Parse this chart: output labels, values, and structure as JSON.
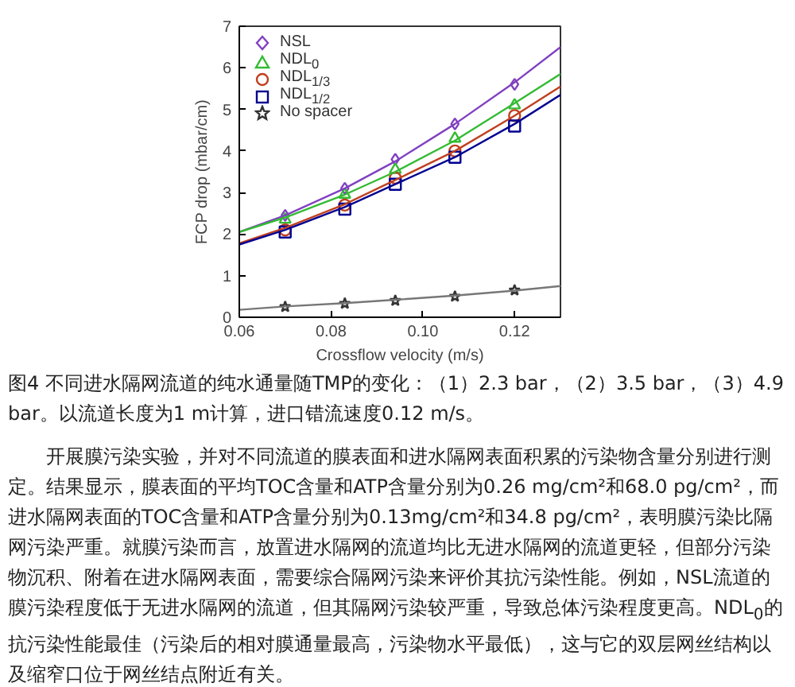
{
  "chart_data": {
    "type": "scatter",
    "xlabel": "Crossflow velocity (m/s)",
    "ylabel": "FCP drop (mbar/cm)",
    "xlim": [
      0.06,
      0.13
    ],
    "ylim": [
      0,
      7
    ],
    "xticks": [
      0.06,
      0.08,
      {
        "value": 0.1,
        "label": "0.10"
      },
      0.12
    ],
    "yticks": [
      0,
      1,
      2,
      3,
      4,
      5,
      6,
      7
    ],
    "grid": false,
    "legend": "top left",
    "x": [
      0.07,
      0.083,
      0.094,
      0.107,
      0.12
    ],
    "series": [
      {
        "name": "NSL",
        "color": "#8040c0",
        "marker": "diamond",
        "values": [
          2.45,
          3.1,
          3.8,
          4.65,
          5.6
        ]
      },
      {
        "name": "NDL$_{0}$",
        "color": "#33bb33",
        "marker": "triangle",
        "values": [
          2.35,
          2.95,
          3.55,
          4.3,
          5.1
        ]
      },
      {
        "name": "NDL$_{1/3}$",
        "color": "#c04020",
        "marker": "circle",
        "values": [
          2.1,
          2.7,
          3.35,
          4.0,
          4.85
        ]
      },
      {
        "name": "NDL$_{1/2}$",
        "color": "#000090",
        "marker": "square",
        "values": [
          2.05,
          2.6,
          3.2,
          3.85,
          4.6
        ]
      },
      {
        "name": "No spacer",
        "color": "#333333",
        "marker": "star",
        "values": [
          0.25,
          0.33,
          0.4,
          0.5,
          0.65
        ]
      },
      {
        "type": "line",
        "color": "#8040c0",
        "x": [
          0.06,
          0.07,
          0.083,
          0.094,
          0.107,
          0.12,
          0.13
        ],
        "values": [
          2.05,
          2.45,
          3.1,
          3.75,
          4.65,
          5.65,
          6.5
        ]
      },
      {
        "type": "line",
        "color": "#33bb33",
        "x": [
          0.06,
          0.07,
          0.083,
          0.094,
          0.107,
          0.12,
          0.13
        ],
        "values": [
          2.05,
          2.4,
          2.95,
          3.5,
          4.25,
          5.15,
          5.85
        ]
      },
      {
        "type": "line",
        "color": "#c04020",
        "x": [
          0.06,
          0.07,
          0.083,
          0.094,
          0.107,
          0.12,
          0.13
        ],
        "values": [
          1.78,
          2.15,
          2.72,
          3.3,
          4.0,
          4.85,
          5.55
        ]
      },
      {
        "type": "line",
        "color": "#000090",
        "x": [
          0.06,
          0.07,
          0.083,
          0.094,
          0.107,
          0.12,
          0.13
        ],
        "values": [
          1.75,
          2.1,
          2.65,
          3.2,
          3.85,
          4.65,
          5.35
        ]
      },
      {
        "type": "line",
        "color": "#777777",
        "x": [
          0.06,
          0.07,
          0.083,
          0.094,
          0.107,
          0.12,
          0.13
        ],
        "values": [
          0.18,
          0.26,
          0.34,
          0.42,
          0.52,
          0.64,
          0.75
        ]
      }
    ],
    "annotations": [
      "图4 不同进水隔网流道的纯水通量随TMP的变化：（1）2.3 bar，（2）3.5 bar，（3）4.9 bar。以流道长度为1 m计算，进口错流速度0.12 m/s。",
      "开展膜污染实验，并对不同流道的膜表面和进水隔网表面积累的污染物含量分别进行测定。结果显示，膜表面的平均TOC含量和ATP含量分别为0.26 mg/cm²和68.0 pg/cm²，而进水隔网表面的TOC含量和ATP含量分别为0.13mg/cm²和34.8 pg/cm²，表明膜污染比隔网污染严重。就膜污染而言，放置进水隔网的流道均比无进水隔网的流道更轻，但部分污染物沉积、附着在进水隔网表面，需要综合隔网污染来评价其抗污染性能。例如，NSL流道的膜污染程度低于无进水隔网的流道，但其隔网污染较严重，导致总体污染程度更高。NDL$_{0}$的抗污染性能最佳（污染后的相对膜通量最高，污染物水平最低），这与它的双层网丝结构以及缩窄口位于网丝结点附近有关。"
    ]
  }
}
